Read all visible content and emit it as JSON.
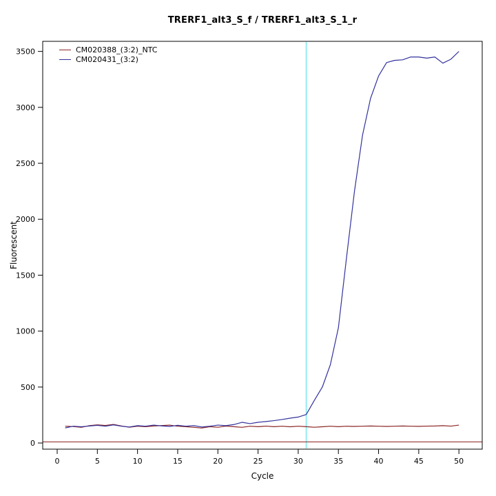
{
  "chart_data": {
    "type": "line",
    "title": "TRERF1_alt3_S_f / TRERF1_alt3_S_1_r",
    "xlabel": "Cycle",
    "ylabel": "Fluorescent",
    "x_ticks": [
      0,
      5,
      10,
      15,
      20,
      25,
      30,
      35,
      40,
      45,
      50
    ],
    "y_ticks": [
      0,
      500,
      1000,
      1500,
      2000,
      2500,
      3000,
      3500
    ],
    "x_range": [
      -1.8,
      52.9
    ],
    "y_range": [
      -55,
      3590
    ],
    "grid": "off",
    "legend_position": "top-left-inside",
    "ct_line": {
      "x": 31,
      "color": "#7ee9ef"
    },
    "threshold_line": {
      "y": 10,
      "color": "#8b2323"
    },
    "x": [
      1,
      2,
      3,
      4,
      5,
      6,
      7,
      8,
      9,
      10,
      11,
      12,
      13,
      14,
      15,
      16,
      17,
      18,
      19,
      20,
      21,
      22,
      23,
      24,
      25,
      26,
      27,
      28,
      29,
      30,
      31,
      32,
      33,
      34,
      35,
      36,
      37,
      38,
      39,
      40,
      41,
      42,
      43,
      44,
      45,
      46,
      47,
      48,
      49,
      50
    ],
    "series": [
      {
        "name": "CM020388_(3:2)_NTC",
        "color": "#8b2323",
        "values": [
          150,
          147,
          140,
          155,
          162,
          157,
          166,
          152,
          141,
          150,
          146,
          152,
          156,
          160,
          150,
          146,
          140,
          134,
          146,
          141,
          151,
          146,
          140,
          150,
          146,
          151,
          146,
          150,
          145,
          150,
          146,
          141,
          145,
          150,
          146,
          150,
          148,
          150,
          152,
          150,
          148,
          150,
          152,
          150,
          149,
          151,
          152,
          155,
          151,
          160
        ]
      },
      {
        "name": "CM020431_(3:2)",
        "color": "#31319c",
        "values": [
          135,
          150,
          145,
          152,
          158,
          150,
          162,
          150,
          143,
          155,
          150,
          160,
          153,
          148,
          158,
          150,
          155,
          143,
          150,
          160,
          155,
          165,
          185,
          173,
          185,
          192,
          200,
          210,
          222,
          232,
          255,
          380,
          500,
          700,
          1030,
          1650,
          2250,
          2750,
          3080,
          3280,
          3400,
          3420,
          3425,
          3450,
          3450,
          3440,
          3450,
          3395,
          3430,
          3500
        ]
      }
    ]
  }
}
